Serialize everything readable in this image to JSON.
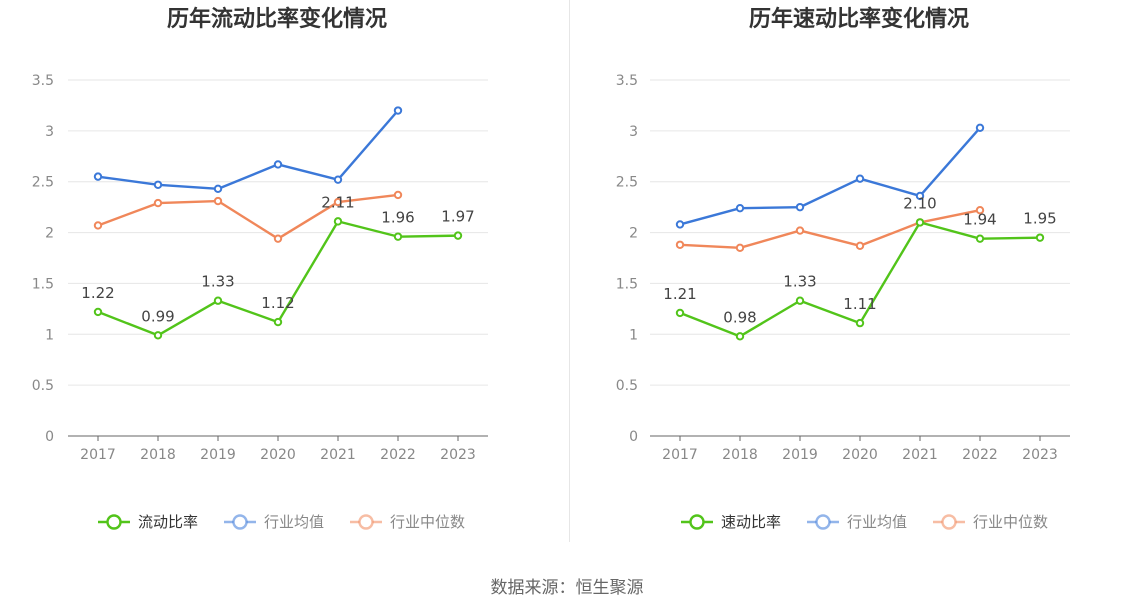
{
  "source_label": "数据来源：恒生聚源",
  "chart_data": [
    {
      "type": "line",
      "title": "历年流动比率变化情况",
      "categories": [
        "2017",
        "2018",
        "2019",
        "2020",
        "2021",
        "2022",
        "2023"
      ],
      "ylim": [
        0,
        3.5
      ],
      "yticks": [
        "0",
        "0.5",
        "1",
        "1.5",
        "2",
        "2.5",
        "3",
        "3.5"
      ],
      "grid": true,
      "legend": "bottom",
      "series": [
        {
          "name": "流动比率",
          "color": "#52c41a",
          "values": [
            1.22,
            0.99,
            1.33,
            1.12,
            2.11,
            1.96,
            1.97
          ],
          "labels": [
            "1.22",
            "0.99",
            "1.33",
            "1.12",
            "2.11",
            "1.96",
            "1.97"
          ]
        },
        {
          "name": "行业均值",
          "color": "#3b78d8",
          "values": [
            2.55,
            2.47,
            2.43,
            2.67,
            2.52,
            3.2,
            null
          ]
        },
        {
          "name": "行业中位数",
          "color": "#f0875a",
          "values": [
            2.07,
            2.29,
            2.31,
            1.94,
            2.3,
            2.37,
            null
          ]
        }
      ]
    },
    {
      "type": "line",
      "title": "历年速动比率变化情况",
      "categories": [
        "2017",
        "2018",
        "2019",
        "2020",
        "2021",
        "2022",
        "2023"
      ],
      "ylim": [
        0,
        3.5
      ],
      "yticks": [
        "0",
        "0.5",
        "1",
        "1.5",
        "2",
        "2.5",
        "3",
        "3.5"
      ],
      "grid": true,
      "legend": "bottom",
      "series": [
        {
          "name": "速动比率",
          "color": "#52c41a",
          "values": [
            1.21,
            0.98,
            1.33,
            1.11,
            2.1,
            1.94,
            1.95
          ],
          "labels": [
            "1.21",
            "0.98",
            "1.33",
            "1.11",
            "2.10",
            "1.94",
            "1.95"
          ]
        },
        {
          "name": "行业均值",
          "color": "#3b78d8",
          "values": [
            2.08,
            2.24,
            2.25,
            2.53,
            2.36,
            3.03,
            null
          ]
        },
        {
          "name": "行业中位数",
          "color": "#f0875a",
          "values": [
            1.88,
            1.85,
            2.02,
            1.87,
            2.1,
            2.22,
            null
          ]
        }
      ]
    }
  ]
}
